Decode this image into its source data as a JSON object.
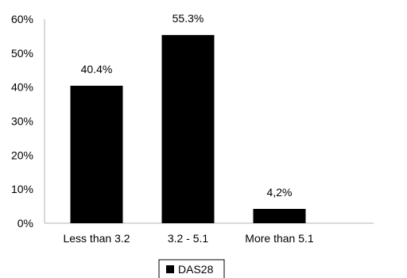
{
  "chart_data": {
    "type": "bar",
    "categories": [
      "Less than 3.2",
      "3.2 - 5.1",
      "More than 5.1"
    ],
    "series": [
      {
        "name": "DAS28",
        "values": [
          40.4,
          55.3,
          4.2
        ]
      }
    ],
    "data_labels": [
      "40.4%",
      "55.3%",
      "4,2%"
    ],
    "yticks": [
      "0%",
      "10%",
      "20%",
      "30%",
      "40%",
      "50%",
      "60%"
    ],
    "ylim": [
      0,
      60
    ],
    "grid": false,
    "legend": {
      "position": "bottom",
      "label": "DAS28"
    },
    "colors": {
      "bar": "#000000",
      "axis": "#b3b3b3"
    }
  }
}
